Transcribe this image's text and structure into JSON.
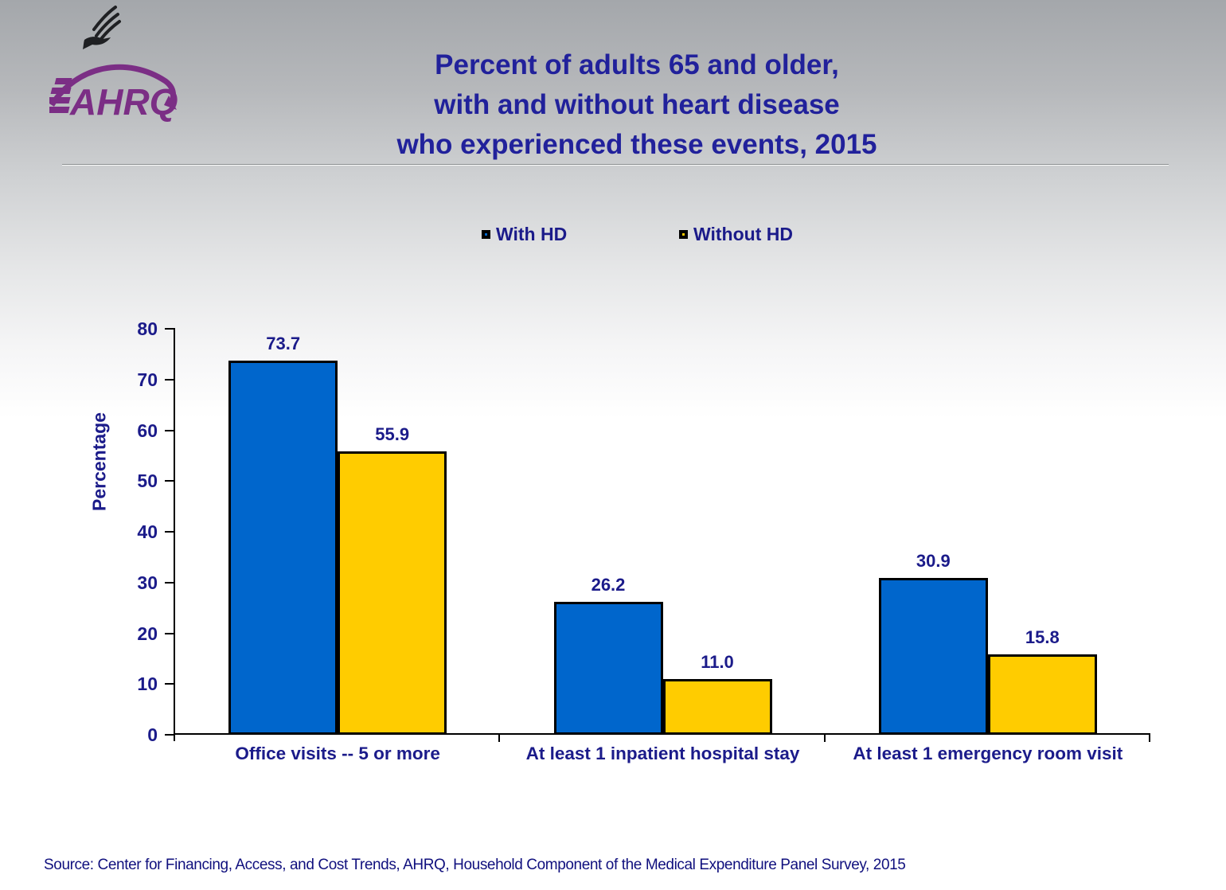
{
  "header": {
    "title_lines": [
      "Percent of adults 65 and older,",
      "with and without heart disease",
      "who experienced these events, 2015"
    ],
    "logo_org": "AHRQ"
  },
  "chart_data": {
    "type": "bar",
    "title": "Percent of adults 65 and older, with and without heart disease who experienced these events, 2015",
    "categories": [
      "Office visits -- 5 or more",
      "At least 1 inpatient hospital stay",
      "At least 1 emergency room visit"
    ],
    "series": [
      {
        "name": "With HD",
        "color": "#0066CC",
        "values": [
          73.7,
          26.2,
          30.9
        ]
      },
      {
        "name": "Without HD",
        "color": "#FFCC00",
        "values": [
          55.9,
          11.0,
          15.8
        ]
      }
    ],
    "xlabel": "",
    "ylabel": "Percentage",
    "ylim": [
      0,
      80
    ],
    "ytick_step": 10,
    "grid": false,
    "legend_position": "top",
    "bar_border_color": "#000000"
  },
  "footer": {
    "source": "Source: Center for Financing, Access, and Cost Trends, AHRQ, Household Component of the Medical Expenditure Panel Survey, 2015"
  },
  "colors": {
    "title_text": "#21219B",
    "chart_text": "#1B1B8A",
    "background_top": "#A4A7AB",
    "ahrq_purple": "#7B2E85"
  }
}
